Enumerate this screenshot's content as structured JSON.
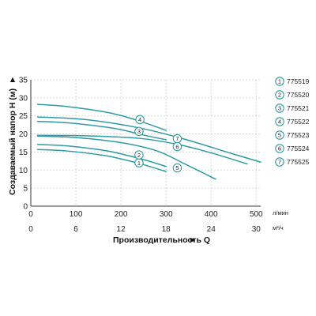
{
  "chart_data": {
    "type": "line",
    "title": "",
    "xlabel": "Производительность Q",
    "ylabel": "Создаваемый напор H (м)",
    "x_unit_primary": "л/мин",
    "x_unit_secondary": "м³/ч",
    "xlim": [
      0,
      510
    ],
    "ylim": [
      0,
      35
    ],
    "x_ticks": [
      0,
      100,
      200,
      300,
      400,
      500
    ],
    "x_ticks_secondary": [
      {
        "lpm": 0,
        "label": "0"
      },
      {
        "lpm": 100,
        "label": "6"
      },
      {
        "lpm": 200,
        "label": "12"
      },
      {
        "lpm": 300,
        "label": "18"
      },
      {
        "lpm": 400,
        "label": "24"
      },
      {
        "lpm": 500,
        "label": "30"
      }
    ],
    "y_ticks": [
      0,
      5,
      10,
      15,
      20,
      25,
      30,
      35
    ],
    "grid": true,
    "legend_position": "right",
    "line_color": "#2e9ba3",
    "series": [
      {
        "name": "775519",
        "marker": "1",
        "x": [
          15,
          80,
          160,
          200,
          250,
          300
        ],
        "y": [
          15.7,
          15.3,
          14.1,
          13.1,
          11.5,
          9.6
        ]
      },
      {
        "name": "775520",
        "marker": "2",
        "x": [
          15,
          80,
          160,
          200,
          250,
          300
        ],
        "y": [
          17.1,
          16.7,
          15.5,
          14.5,
          12.9,
          11.0
        ]
      },
      {
        "name": "775521",
        "marker": "3",
        "x": [
          15,
          80,
          160,
          200,
          250,
          300
        ],
        "y": [
          23.5,
          23.1,
          22.0,
          21.2,
          19.7,
          18.4
        ]
      },
      {
        "name": "775522",
        "marker": "4",
        "x": [
          15,
          80,
          160,
          200,
          250,
          300
        ],
        "y": [
          28.2,
          27.6,
          26.2,
          25.1,
          23.2,
          21.0
        ]
      },
      {
        "name": "775523",
        "marker": "5",
        "x": [
          15,
          100,
          200,
          280,
          340,
          410
        ],
        "y": [
          19.4,
          19.0,
          17.6,
          15.3,
          11.8,
          7.5
        ]
      },
      {
        "name": "775524",
        "marker": "6",
        "x": [
          15,
          120,
          240,
          330,
          410,
          480
        ],
        "y": [
          19.6,
          19.5,
          18.8,
          17.0,
          14.4,
          11.7
        ]
      },
      {
        "name": "775525",
        "marker": "7",
        "x": [
          15,
          120,
          240,
          340,
          440,
          510
        ],
        "y": [
          24.7,
          24.0,
          21.7,
          18.6,
          14.8,
          12.2
        ]
      }
    ],
    "annotations": [
      {
        "marker": "1",
        "x": 240,
        "y": 12.0
      },
      {
        "marker": "2",
        "x": 240,
        "y": 14.2
      },
      {
        "marker": "3",
        "x": 240,
        "y": 20.7
      },
      {
        "marker": "4",
        "x": 242,
        "y": 24.0
      },
      {
        "marker": "5",
        "x": 325,
        "y": 10.6
      },
      {
        "marker": "6",
        "x": 325,
        "y": 16.5
      },
      {
        "marker": "7",
        "x": 325,
        "y": 18.7
      }
    ]
  }
}
